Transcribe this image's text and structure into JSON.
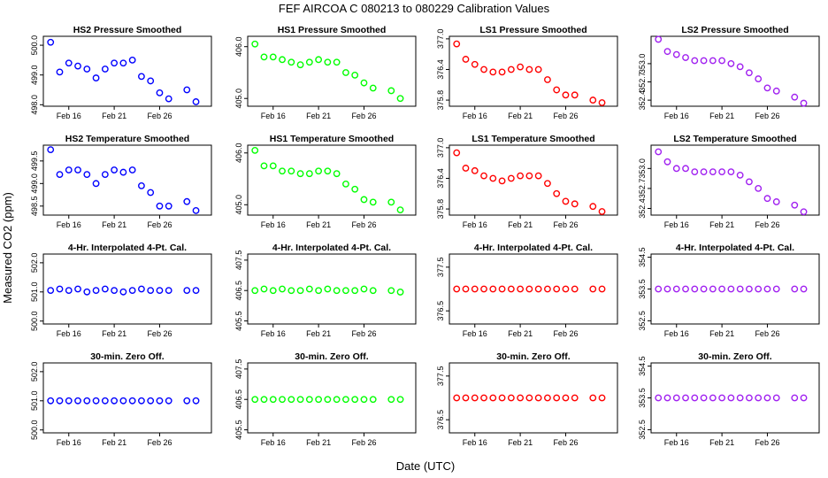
{
  "page_title": "FEF   AIRCOA C   080213 to 080229   Calibration Values",
  "y_axis_label": "Measured CO2 (ppm)",
  "x_axis_label": "Date (UTC)",
  "colors": {
    "HS2": "#0000ff",
    "HS1": "#00ff00",
    "LS1": "#ff0000",
    "LS2": "#a020f0"
  },
  "chart_data": [
    {
      "type": "scatter",
      "row": 0,
      "col": 0,
      "title": "HS2 Pressure Smoothed",
      "series": "HS2",
      "color": "#0000ff",
      "xlim": [
        13.2,
        31.7
      ],
      "ylim": [
        497.95,
        500.3
      ],
      "yticks": [
        498.0,
        499.0,
        500.0
      ],
      "ylabels": [
        "498.0",
        "499.0",
        "500.0"
      ],
      "xticks": [
        16,
        21,
        26
      ],
      "xlabels": [
        "Feb 16",
        "Feb 21",
        "Feb 26"
      ],
      "x_days": [
        14,
        15,
        16,
        17,
        18,
        19,
        20,
        21,
        22,
        23,
        24,
        25,
        26,
        27,
        28,
        29,
        30,
        31
      ],
      "values": [
        500.1,
        499.1,
        499.4,
        499.3,
        499.2,
        498.9,
        499.2,
        499.4,
        499.4,
        499.5,
        498.95,
        498.8,
        498.4,
        498.2,
        null,
        498.5,
        498.1,
        null
      ]
    },
    {
      "type": "scatter",
      "row": 0,
      "col": 1,
      "title": "HS1 Pressure Smoothed",
      "series": "HS1",
      "color": "#00ff00",
      "xlim": [
        13.2,
        31.7
      ],
      "ylim": [
        404.85,
        406.2
      ],
      "yticks": [
        405.0,
        406.0
      ],
      "ylabels": [
        "405.0",
        "406.0"
      ],
      "xticks": [
        16,
        21,
        26
      ],
      "xlabels": [
        "Feb 16",
        "Feb 21",
        "Feb 26"
      ],
      "x_days": [
        14,
        15,
        16,
        17,
        18,
        19,
        20,
        21,
        22,
        23,
        24,
        25,
        26,
        27,
        28,
        29,
        30,
        31
      ],
      "values": [
        406.05,
        405.8,
        405.8,
        405.75,
        405.7,
        405.65,
        405.7,
        405.75,
        405.7,
        405.7,
        405.5,
        405.45,
        405.3,
        405.2,
        null,
        405.15,
        405.0,
        null
      ]
    },
    {
      "type": "scatter",
      "row": 0,
      "col": 2,
      "title": "LS1 Pressure Smoothed",
      "series": "LS1",
      "color": "#ff0000",
      "xlim": [
        13.2,
        31.7
      ],
      "ylim": [
        375.68,
        377.05
      ],
      "yticks": [
        375.8,
        376.4,
        377.0
      ],
      "ylabels": [
        "375.8",
        "376.4",
        "377.0"
      ],
      "xticks": [
        16,
        21,
        26
      ],
      "xlabels": [
        "Feb 16",
        "Feb 21",
        "Feb 26"
      ],
      "x_days": [
        14,
        15,
        16,
        17,
        18,
        19,
        20,
        21,
        22,
        23,
        24,
        25,
        26,
        27,
        28,
        29,
        30,
        31
      ],
      "values": [
        376.9,
        376.6,
        376.5,
        376.4,
        376.35,
        376.35,
        376.4,
        376.45,
        376.4,
        376.4,
        376.2,
        376.0,
        375.9,
        375.9,
        null,
        375.8,
        375.75,
        null
      ]
    },
    {
      "type": "scatter",
      "row": 0,
      "col": 3,
      "title": "LS2 Pressure Smoothed",
      "series": "LS2",
      "color": "#a020f0",
      "xlim": [
        13.2,
        31.7
      ],
      "ylim": [
        352.3,
        353.45
      ],
      "yticks": [
        352.4,
        352.7,
        353.0
      ],
      "ylabels": [
        "352.4",
        "352.7",
        "353.0"
      ],
      "xticks": [
        16,
        21,
        26
      ],
      "xlabels": [
        "Feb 16",
        "Feb 21",
        "Feb 26"
      ],
      "x_days": [
        14,
        15,
        16,
        17,
        18,
        19,
        20,
        21,
        22,
        23,
        24,
        25,
        26,
        27,
        28,
        29,
        30,
        31
      ],
      "values": [
        353.4,
        353.2,
        353.15,
        353.1,
        353.05,
        353.05,
        353.05,
        353.05,
        353.0,
        352.95,
        352.85,
        352.75,
        352.6,
        352.55,
        null,
        352.45,
        352.35,
        null
      ]
    },
    {
      "type": "scatter",
      "row": 1,
      "col": 0,
      "title": "HS2 Temperature Smoothed",
      "series": "HS2",
      "color": "#0000ff",
      "xlim": [
        13.2,
        31.7
      ],
      "ylim": [
        498.3,
        499.85
      ],
      "yticks": [
        498.5,
        499.0,
        499.5
      ],
      "ylabels": [
        "498.5",
        "499.0",
        "499.5"
      ],
      "xticks": [
        16,
        21,
        26
      ],
      "xlabels": [
        "Feb 16",
        "Feb 21",
        "Feb 26"
      ],
      "x_days": [
        14,
        15,
        16,
        17,
        18,
        19,
        20,
        21,
        22,
        23,
        24,
        25,
        26,
        27,
        28,
        29,
        30,
        31
      ],
      "values": [
        499.75,
        499.2,
        499.3,
        499.3,
        499.2,
        499.0,
        499.2,
        499.3,
        499.25,
        499.3,
        498.95,
        498.8,
        498.5,
        498.5,
        null,
        498.6,
        498.4,
        null
      ]
    },
    {
      "type": "scatter",
      "row": 1,
      "col": 1,
      "title": "HS1 Temperature Smoothed",
      "series": "HS1",
      "color": "#00ff00",
      "xlim": [
        13.2,
        31.7
      ],
      "ylim": [
        404.8,
        406.15
      ],
      "yticks": [
        405.0,
        406.0
      ],
      "ylabels": [
        "405.0",
        "406.0"
      ],
      "xticks": [
        16,
        21,
        26
      ],
      "xlabels": [
        "Feb 16",
        "Feb 21",
        "Feb 26"
      ],
      "x_days": [
        14,
        15,
        16,
        17,
        18,
        19,
        20,
        21,
        22,
        23,
        24,
        25,
        26,
        27,
        28,
        29,
        30,
        31
      ],
      "values": [
        406.05,
        405.75,
        405.75,
        405.65,
        405.65,
        405.6,
        405.6,
        405.65,
        405.65,
        405.6,
        405.4,
        405.3,
        405.1,
        405.05,
        null,
        405.05,
        404.9,
        null
      ]
    },
    {
      "type": "scatter",
      "row": 1,
      "col": 2,
      "title": "LS1 Temperature Smoothed",
      "series": "LS1",
      "color": "#ff0000",
      "xlim": [
        13.2,
        31.7
      ],
      "ylim": [
        375.68,
        377.05
      ],
      "yticks": [
        375.8,
        376.4,
        377.0
      ],
      "ylabels": [
        "375.8",
        "376.4",
        "377.0"
      ],
      "xticks": [
        16,
        21,
        26
      ],
      "xlabels": [
        "Feb 16",
        "Feb 21",
        "Feb 26"
      ],
      "x_days": [
        14,
        15,
        16,
        17,
        18,
        19,
        20,
        21,
        22,
        23,
        24,
        25,
        26,
        27,
        28,
        29,
        30,
        31
      ],
      "values": [
        376.9,
        376.6,
        376.55,
        376.45,
        376.4,
        376.35,
        376.4,
        376.45,
        376.45,
        376.45,
        376.3,
        376.1,
        375.95,
        375.9,
        null,
        375.85,
        375.75,
        null
      ]
    },
    {
      "type": "scatter",
      "row": 1,
      "col": 3,
      "title": "LS2 Temperature Smoothed",
      "series": "LS2",
      "color": "#a020f0",
      "xlim": [
        13.2,
        31.7
      ],
      "ylim": [
        352.3,
        353.35
      ],
      "yticks": [
        352.4,
        352.7,
        353.0
      ],
      "ylabels": [
        "352.4",
        "352.7",
        "353.0"
      ],
      "xticks": [
        16,
        21,
        26
      ],
      "xlabels": [
        "Feb 16",
        "Feb 21",
        "Feb 26"
      ],
      "x_days": [
        14,
        15,
        16,
        17,
        18,
        19,
        20,
        21,
        22,
        23,
        24,
        25,
        26,
        27,
        28,
        29,
        30,
        31
      ],
      "values": [
        353.25,
        353.1,
        353.0,
        353.0,
        352.95,
        352.95,
        352.95,
        352.95,
        352.95,
        352.9,
        352.8,
        352.7,
        352.55,
        352.5,
        null,
        352.45,
        352.35,
        null
      ]
    },
    {
      "type": "scatter",
      "row": 2,
      "col": 0,
      "title": "4-Hr. Interpolated 4-Pt. Cal.",
      "series": "HS2",
      "color": "#0000ff",
      "xlim": [
        13.2,
        31.7
      ],
      "ylim": [
        499.9,
        502.3
      ],
      "yticks": [
        500.0,
        501.0,
        502.0
      ],
      "ylabels": [
        "500.0",
        "501.0",
        "502.0"
      ],
      "xticks": [
        16,
        21,
        26
      ],
      "xlabels": [
        "Feb 16",
        "Feb 21",
        "Feb 26"
      ],
      "x_days": [
        14,
        15,
        16,
        17,
        18,
        19,
        20,
        21,
        22,
        23,
        24,
        25,
        26,
        27,
        28,
        29,
        30,
        31
      ],
      "values": [
        501.05,
        501.1,
        501.05,
        501.1,
        501.0,
        501.05,
        501.1,
        501.05,
        501.0,
        501.05,
        501.1,
        501.05,
        501.05,
        501.05,
        null,
        501.05,
        501.05,
        null
      ]
    },
    {
      "type": "scatter",
      "row": 2,
      "col": 1,
      "title": "4-Hr. Interpolated 4-Pt. Cal.",
      "series": "HS1",
      "color": "#00ff00",
      "xlim": [
        13.2,
        31.7
      ],
      "ylim": [
        405.4,
        407.7
      ],
      "yticks": [
        405.5,
        406.5,
        407.5
      ],
      "ylabels": [
        "405.5",
        "406.5",
        "407.5"
      ],
      "xticks": [
        16,
        21,
        26
      ],
      "xlabels": [
        "Feb 16",
        "Feb 21",
        "Feb 26"
      ],
      "x_days": [
        14,
        15,
        16,
        17,
        18,
        19,
        20,
        21,
        22,
        23,
        24,
        25,
        26,
        27,
        28,
        29,
        30,
        31
      ],
      "values": [
        406.5,
        406.55,
        406.5,
        406.55,
        406.5,
        406.5,
        406.55,
        406.5,
        406.55,
        406.5,
        406.5,
        406.5,
        406.55,
        406.5,
        null,
        406.5,
        406.45,
        null
      ]
    },
    {
      "type": "scatter",
      "row": 2,
      "col": 2,
      "title": "4-Hr. Interpolated 4-Pt. Cal.",
      "series": "LS1",
      "color": "#ff0000",
      "xlim": [
        13.2,
        31.7
      ],
      "ylim": [
        376.2,
        377.8
      ],
      "yticks": [
        376.5,
        377.5
      ],
      "ylabels": [
        "376.5",
        "377.5"
      ],
      "xticks": [
        16,
        21,
        26
      ],
      "xlabels": [
        "Feb 16",
        "Feb 21",
        "Feb 26"
      ],
      "x_days": [
        14,
        15,
        16,
        17,
        18,
        19,
        20,
        21,
        22,
        23,
        24,
        25,
        26,
        27,
        28,
        29,
        30,
        31
      ],
      "values": [
        377.0,
        377.0,
        377.0,
        377.0,
        377.0,
        377.0,
        377.0,
        377.0,
        377.0,
        377.0,
        377.0,
        377.0,
        377.0,
        377.0,
        null,
        377.0,
        377.0,
        null
      ]
    },
    {
      "type": "scatter",
      "row": 2,
      "col": 3,
      "title": "4-Hr. Interpolated 4-Pt. Cal.",
      "series": "LS2",
      "color": "#a020f0",
      "xlim": [
        13.2,
        31.7
      ],
      "ylim": [
        352.4,
        354.6
      ],
      "yticks": [
        352.5,
        353.5,
        354.5
      ],
      "ylabels": [
        "352.5",
        "353.5",
        "354.5"
      ],
      "xticks": [
        16,
        21,
        26
      ],
      "xlabels": [
        "Feb 16",
        "Feb 21",
        "Feb 26"
      ],
      "x_days": [
        14,
        15,
        16,
        17,
        18,
        19,
        20,
        21,
        22,
        23,
        24,
        25,
        26,
        27,
        28,
        29,
        30,
        31
      ],
      "values": [
        353.5,
        353.5,
        353.5,
        353.5,
        353.5,
        353.5,
        353.5,
        353.5,
        353.5,
        353.5,
        353.5,
        353.5,
        353.5,
        353.5,
        null,
        353.5,
        353.5,
        null
      ]
    },
    {
      "type": "scatter",
      "row": 3,
      "col": 0,
      "title": "30-min. Zero Off.",
      "series": "HS2",
      "color": "#0000ff",
      "xlim": [
        13.2,
        31.7
      ],
      "ylim": [
        499.9,
        502.3
      ],
      "yticks": [
        500.0,
        501.0,
        502.0
      ],
      "ylabels": [
        "500.0",
        "501.0",
        "502.0"
      ],
      "xticks": [
        16,
        21,
        26
      ],
      "xlabels": [
        "Feb 16",
        "Feb 21",
        "Feb 26"
      ],
      "x_days": [
        14,
        15,
        16,
        17,
        18,
        19,
        20,
        21,
        22,
        23,
        24,
        25,
        26,
        27,
        28,
        29,
        30,
        31
      ],
      "values": [
        501.0,
        501.0,
        501.0,
        501.0,
        501.0,
        501.0,
        501.0,
        501.0,
        501.0,
        501.0,
        501.0,
        501.0,
        501.0,
        501.0,
        null,
        501.0,
        501.0,
        null
      ]
    },
    {
      "type": "scatter",
      "row": 3,
      "col": 1,
      "title": "30-min. Zero Off.",
      "series": "HS1",
      "color": "#00ff00",
      "xlim": [
        13.2,
        31.7
      ],
      "ylim": [
        405.4,
        407.7
      ],
      "yticks": [
        405.5,
        406.5,
        407.5
      ],
      "ylabels": [
        "405.5",
        "406.5",
        "407.5"
      ],
      "xticks": [
        16,
        21,
        26
      ],
      "xlabels": [
        "Feb 16",
        "Feb 21",
        "Feb 26"
      ],
      "x_days": [
        14,
        15,
        16,
        17,
        18,
        19,
        20,
        21,
        22,
        23,
        24,
        25,
        26,
        27,
        28,
        29,
        30,
        31
      ],
      "values": [
        406.5,
        406.5,
        406.5,
        406.5,
        406.5,
        406.5,
        406.5,
        406.5,
        406.5,
        406.5,
        406.5,
        406.5,
        406.5,
        406.5,
        null,
        406.5,
        406.5,
        null
      ]
    },
    {
      "type": "scatter",
      "row": 3,
      "col": 2,
      "title": "30-min. Zero Off.",
      "series": "LS1",
      "color": "#ff0000",
      "xlim": [
        13.2,
        31.7
      ],
      "ylim": [
        376.2,
        377.8
      ],
      "yticks": [
        376.5,
        377.5
      ],
      "ylabels": [
        "376.5",
        "377.5"
      ],
      "xticks": [
        16,
        21,
        26
      ],
      "xlabels": [
        "Feb 16",
        "Feb 21",
        "Feb 26"
      ],
      "x_days": [
        14,
        15,
        16,
        17,
        18,
        19,
        20,
        21,
        22,
        23,
        24,
        25,
        26,
        27,
        28,
        29,
        30,
        31
      ],
      "values": [
        377.0,
        377.0,
        377.0,
        377.0,
        377.0,
        377.0,
        377.0,
        377.0,
        377.0,
        377.0,
        377.0,
        377.0,
        377.0,
        377.0,
        null,
        377.0,
        377.0,
        null
      ]
    },
    {
      "type": "scatter",
      "row": 3,
      "col": 3,
      "title": "30-min. Zero Off.",
      "series": "LS2",
      "color": "#a020f0",
      "xlim": [
        13.2,
        31.7
      ],
      "ylim": [
        352.4,
        354.6
      ],
      "yticks": [
        352.5,
        353.5,
        354.5
      ],
      "ylabels": [
        "352.5",
        "353.5",
        "354.5"
      ],
      "xticks": [
        16,
        21,
        26
      ],
      "xlabels": [
        "Feb 16",
        "Feb 21",
        "Feb 26"
      ],
      "x_days": [
        14,
        15,
        16,
        17,
        18,
        19,
        20,
        21,
        22,
        23,
        24,
        25,
        26,
        27,
        28,
        29,
        30,
        31
      ],
      "values": [
        353.5,
        353.5,
        353.5,
        353.5,
        353.5,
        353.5,
        353.5,
        353.5,
        353.5,
        353.5,
        353.5,
        353.5,
        353.5,
        353.5,
        null,
        353.5,
        353.5,
        null
      ]
    }
  ]
}
